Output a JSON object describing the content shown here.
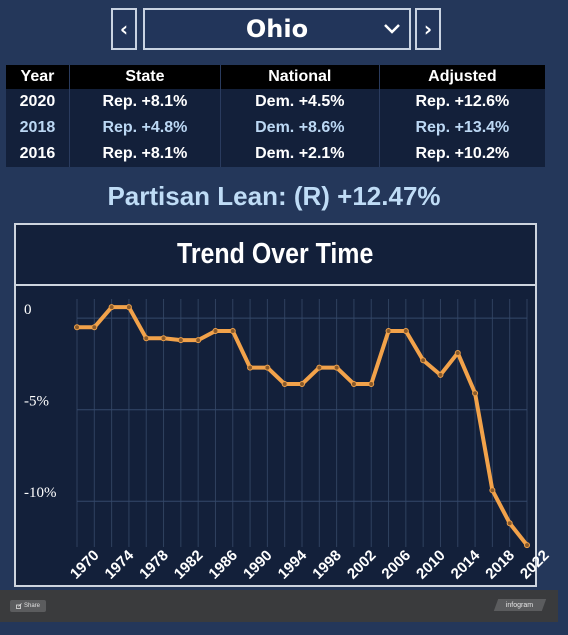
{
  "selector": {
    "prev_label": "‹",
    "next_label": "›",
    "state": "Ohio"
  },
  "table": {
    "headers": [
      "Year",
      "State",
      "National",
      "Adjusted"
    ],
    "rows": [
      [
        "2020",
        "Rep. +8.1%",
        "Dem. +4.5%",
        "Rep. +12.6%"
      ],
      [
        "2018",
        "Rep. +4.8%",
        "Dem. +8.6%",
        "Rep. +13.4%"
      ],
      [
        "2016",
        "Rep. +8.1%",
        "Dem. +2.1%",
        "Rep. +10.2%"
      ]
    ]
  },
  "partisan_lean": "Partisan Lean: (R) +12.47%",
  "chart_data": {
    "type": "line",
    "title": "Trend Over Time",
    "xlabel": "",
    "ylabel": "",
    "x_ticks": [
      "1970",
      "1974",
      "1978",
      "1982",
      "1986",
      "1990",
      "1994",
      "1998",
      "2002",
      "2006",
      "2010",
      "2014",
      "2018",
      "2022"
    ],
    "y_ticks": [
      "0",
      "-5%",
      "-10%"
    ],
    "ylim": [
      -12.5,
      0.5
    ],
    "xlim": [
      1970,
      2022
    ],
    "grid": true,
    "line_color": "#f2a24a",
    "x": [
      1970,
      1972,
      1974,
      1976,
      1978,
      1980,
      1982,
      1984,
      1986,
      1988,
      1990,
      1992,
      1994,
      1996,
      1998,
      2000,
      2002,
      2004,
      2006,
      2008,
      2010,
      2012,
      2014,
      2016,
      2018,
      2020,
      2022
    ],
    "values": [
      -0.5,
      -0.5,
      0.6,
      0.6,
      -1.1,
      -1.1,
      -1.2,
      -1.2,
      -0.7,
      -0.7,
      -2.7,
      -2.7,
      -3.6,
      -3.6,
      -2.7,
      -2.7,
      -3.6,
      -3.6,
      -0.7,
      -0.7,
      -2.3,
      -3.1,
      -1.9,
      -4.1,
      -9.4,
      -11.2,
      -12.4
    ]
  },
  "footer": {
    "share_label": "Share",
    "brand_label": "infogram"
  }
}
